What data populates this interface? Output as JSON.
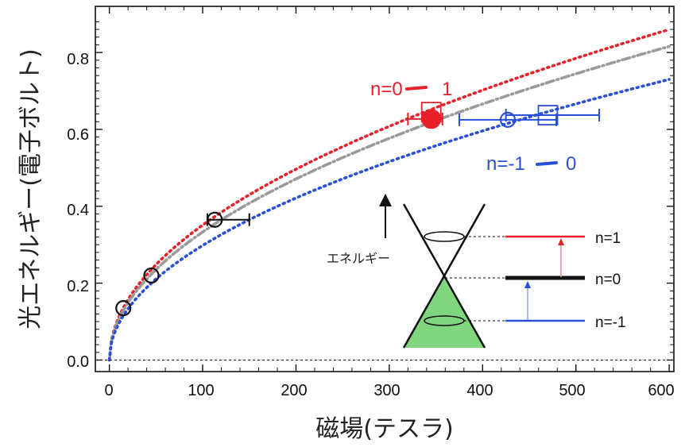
{
  "chart_data": {
    "type": "line",
    "xlabel": "磁場(テスラ)",
    "ylabel": "光エネルギー(電子ボルト)",
    "xlim": [
      -15,
      605
    ],
    "ylim": [
      -0.03,
      0.92
    ],
    "x_ticks": [
      0,
      100,
      200,
      300,
      400,
      500,
      600
    ],
    "y_ticks": [
      0.0,
      0.2,
      0.4,
      0.6,
      0.8
    ],
    "x_tick_labels": [
      "0",
      "100",
      "200",
      "300",
      "400",
      "500",
      "600"
    ],
    "y_tick_labels": [
      "0.0",
      "0.2",
      "0.4",
      "0.6",
      "0.8"
    ],
    "zero_line": true,
    "series": [
      {
        "style": "dotted",
        "color": "#e8202a",
        "formula": "0.0351*sqrt(B)"
      },
      {
        "style": "dash-dot",
        "color": "#9a9a9a",
        "formula": "0.0333*sqrt(B)"
      },
      {
        "style": "dotted",
        "color": "#2a4fd8",
        "formula": "0.0298*sqrt(B)"
      }
    ],
    "points": [
      {
        "x": 15,
        "y": 0.135,
        "marker": "circle-open",
        "color": "#111111"
      },
      {
        "x": 45,
        "y": 0.22,
        "marker": "circle-open",
        "color": "#111111"
      },
      {
        "x": 113,
        "y": 0.365,
        "marker": "circle-open",
        "color": "#111111",
        "xerr": [
          8,
          37
        ]
      },
      {
        "x": 345,
        "y": 0.627,
        "marker": "circle-filled",
        "color": "#e8202a",
        "xerr": [
          25,
          12
        ]
      },
      {
        "x": 345,
        "y": 0.645,
        "marker": "square-open",
        "color": "#e8202a"
      },
      {
        "x": 427,
        "y": 0.625,
        "marker": "circle-open",
        "color": "#2a4fd8",
        "xerr": [
          52,
          52
        ]
      },
      {
        "x": 470,
        "y": 0.637,
        "marker": "square-open",
        "color": "#2a4fd8",
        "xerr": [
          45,
          55
        ]
      }
    ],
    "annotations": [
      {
        "text_before": "n=0",
        "text_after": "1",
        "color": "#e8202a"
      },
      {
        "text_before": "n=-1",
        "text_after": "0",
        "color": "#2a4fd8"
      }
    ],
    "inset": {
      "energy_label": "エネルギー",
      "levels": [
        {
          "label": "n=1",
          "color": "#e8202a"
        },
        {
          "label": "n=0",
          "color": "#111111"
        },
        {
          "label": "n=-1",
          "color": "#2a4fd8"
        }
      ],
      "cone_fill": "#7fd67f"
    }
  }
}
